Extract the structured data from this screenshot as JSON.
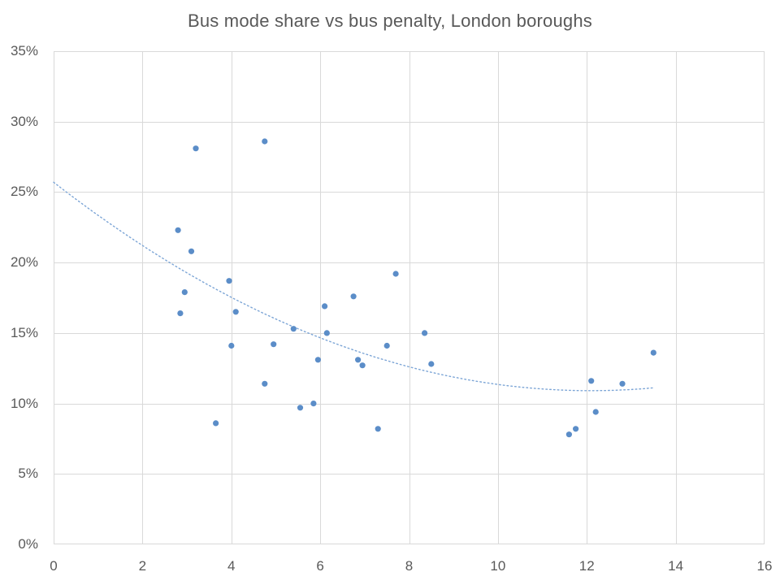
{
  "title": "Bus mode share vs bus penalty, London boroughs",
  "colors": {
    "marker": "#5B8DC8",
    "trendline": "#7CA5D6",
    "gridline": "#D9D9D9",
    "plot_border": "#D9D9D9",
    "axis_text": "#595959",
    "title_text": "#595959",
    "background": "#FFFFFF"
  },
  "chart_data": {
    "type": "scatter",
    "title": "Bus mode share vs bus penalty, London boroughs",
    "xlabel": "",
    "ylabel": "",
    "xlim": [
      0,
      16
    ],
    "ylim": [
      0,
      35
    ],
    "x_tick_interval": 2,
    "y_tick_interval": 5,
    "x_tick_labels": [
      "0",
      "2",
      "4",
      "6",
      "8",
      "10",
      "12",
      "14",
      "16"
    ],
    "y_tick_labels": [
      "0%",
      "5%",
      "10%",
      "15%",
      "20%",
      "25%",
      "30%",
      "35%"
    ],
    "grid": true,
    "legend": false,
    "x_units": "bus penalty",
    "y_units": "bus mode share (%)",
    "points": [
      [
        2.8,
        22.3
      ],
      [
        2.85,
        16.4
      ],
      [
        2.95,
        17.9
      ],
      [
        3.1,
        20.8
      ],
      [
        3.2,
        28.1
      ],
      [
        3.65,
        8.6
      ],
      [
        3.95,
        18.7
      ],
      [
        4.0,
        14.1
      ],
      [
        4.1,
        16.5
      ],
      [
        4.75,
        28.6
      ],
      [
        4.75,
        11.4
      ],
      [
        4.95,
        14.2
      ],
      [
        5.4,
        15.3
      ],
      [
        5.55,
        9.7
      ],
      [
        5.85,
        10.0
      ],
      [
        5.95,
        13.1
      ],
      [
        6.1,
        16.9
      ],
      [
        6.15,
        15.0
      ],
      [
        6.75,
        17.6
      ],
      [
        6.85,
        13.1
      ],
      [
        6.95,
        12.7
      ],
      [
        7.3,
        8.2
      ],
      [
        7.5,
        14.1
      ],
      [
        7.7,
        19.2
      ],
      [
        8.35,
        15.0
      ],
      [
        8.5,
        12.8
      ],
      [
        11.6,
        7.8
      ],
      [
        11.75,
        8.2
      ],
      [
        12.1,
        11.6
      ],
      [
        12.2,
        9.4
      ],
      [
        12.8,
        11.4
      ],
      [
        13.5,
        13.6
      ]
    ],
    "trendline": {
      "style": "dotted",
      "type": "polynomial",
      "degree": 2,
      "equation": "y = 0.1012x^2 - 2.447x + 25.7",
      "a": 0.1012,
      "b": -2.447,
      "c": 25.7,
      "x_start": 0,
      "x_end": 13.55
    }
  }
}
